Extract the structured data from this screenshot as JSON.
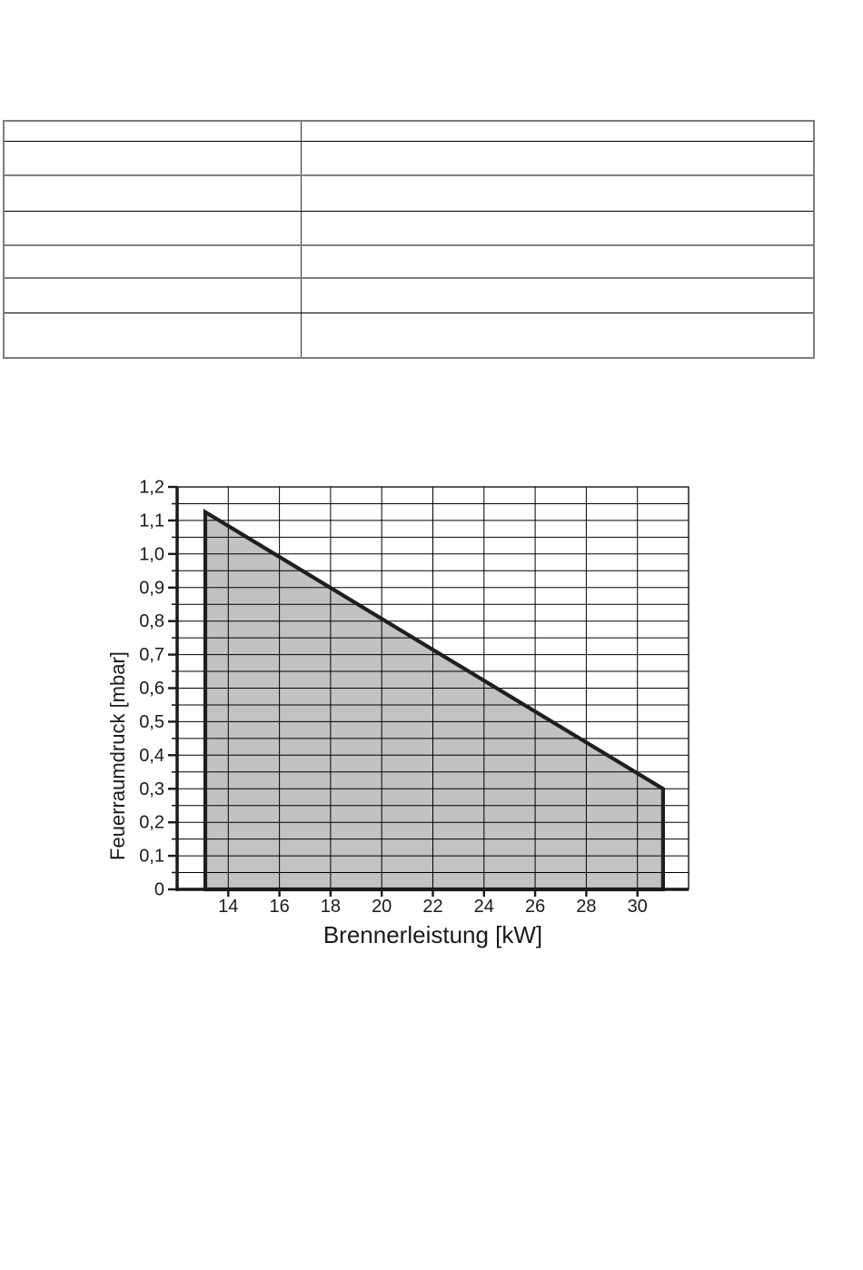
{
  "table": {
    "rows": [
      [
        "",
        ""
      ],
      [
        "",
        ""
      ],
      [
        "",
        ""
      ],
      [
        "",
        ""
      ],
      [
        "",
        ""
      ],
      [
        "",
        ""
      ],
      [
        "",
        ""
      ]
    ]
  },
  "chart_data": {
    "type": "area",
    "title": "",
    "xlabel": "Brennerleistung [kW]",
    "ylabel": "Feuerraumdruck [mbar]",
    "xlim": [
      12,
      32
    ],
    "ylim": [
      0,
      1.2
    ],
    "x_ticks": [
      14,
      16,
      18,
      20,
      22,
      24,
      26,
      28,
      30
    ],
    "y_ticks": [
      0,
      0.1,
      0.2,
      0.3,
      0.4,
      0.5,
      0.6,
      0.7,
      0.8,
      0.9,
      1.0,
      1.1,
      1.2
    ],
    "y_tick_labels": [
      "0",
      "0,1",
      "0,2",
      "0,3",
      "0,4",
      "0,5",
      "0,6",
      "0,7",
      "0,8",
      "0,9",
      "1,0",
      "1,1",
      "1,2"
    ],
    "y_minor_step": 0.05,
    "grid": true,
    "legend_position": "none",
    "series": [
      {
        "name": "operating-range",
        "type": "filled-polygon",
        "points": [
          [
            13.1,
            0
          ],
          [
            13.1,
            1.125
          ],
          [
            31.0,
            0.3
          ],
          [
            31.0,
            0
          ]
        ],
        "fill_color": "#c2c2c2",
        "outline_color": "#1f1f1f"
      }
    ],
    "colors": {
      "grid": "#000000",
      "axis": "#1a1a1a",
      "plot_border": "#000000"
    }
  },
  "table_style": {
    "outer_border_color": "#7d7d7d",
    "inner_line_colors": [
      "#000000",
      "#7e7e7e",
      "#000000",
      "#7e7e7e",
      "#7e7e7e",
      "#000000"
    ]
  }
}
